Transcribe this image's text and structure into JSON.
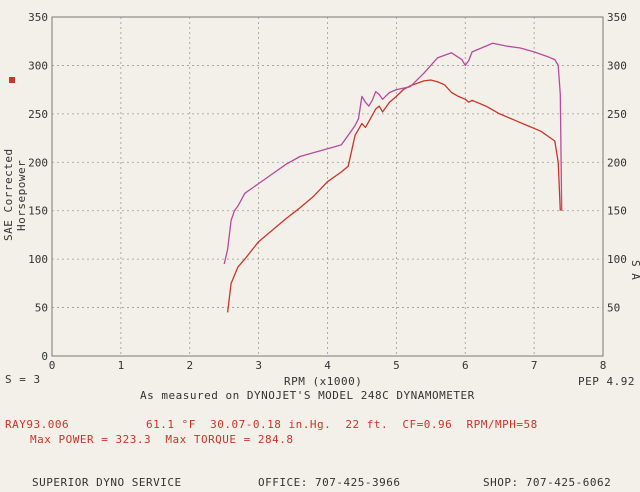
{
  "chart_data": {
    "type": "line",
    "xlabel": "RPM (x1000)",
    "ylabel": "SAE Corrected Horsepower",
    "xlim": [
      0,
      8
    ],
    "ylim": [
      0,
      350
    ],
    "x_ticks": [
      "0",
      "1",
      "2",
      "3",
      "4",
      "5",
      "6",
      "7",
      "8"
    ],
    "y_ticks_left": [
      "0",
      "50",
      "100",
      "150",
      "200",
      "250",
      "300",
      "350"
    ],
    "y_ticks_right": [
      "50",
      "100",
      "150",
      "200",
      "250",
      "300",
      "350"
    ],
    "series": [
      {
        "color": "#c8352a",
        "points": [
          [
            2.55,
            45
          ],
          [
            2.6,
            75
          ],
          [
            2.7,
            92
          ],
          [
            2.8,
            100
          ],
          [
            3.0,
            118
          ],
          [
            3.2,
            130
          ],
          [
            3.4,
            142
          ],
          [
            3.6,
            153
          ],
          [
            3.8,
            165
          ],
          [
            4.0,
            180
          ],
          [
            4.2,
            190
          ],
          [
            4.3,
            196
          ],
          [
            4.4,
            228
          ],
          [
            4.5,
            240
          ],
          [
            4.55,
            236
          ],
          [
            4.6,
            242
          ],
          [
            4.7,
            255
          ],
          [
            4.75,
            258
          ],
          [
            4.8,
            252
          ],
          [
            4.9,
            262
          ],
          [
            5.0,
            268
          ],
          [
            5.1,
            275
          ],
          [
            5.2,
            279
          ],
          [
            5.4,
            284
          ],
          [
            5.5,
            285
          ],
          [
            5.6,
            283
          ],
          [
            5.7,
            280
          ],
          [
            5.8,
            272
          ],
          [
            5.9,
            268
          ],
          [
            6.0,
            265
          ],
          [
            6.05,
            262
          ],
          [
            6.1,
            264
          ],
          [
            6.3,
            258
          ],
          [
            6.5,
            250
          ],
          [
            6.7,
            244
          ],
          [
            6.9,
            238
          ],
          [
            7.1,
            232
          ],
          [
            7.3,
            222
          ],
          [
            7.35,
            200
          ],
          [
            7.38,
            150
          ]
        ]
      },
      {
        "color": "#b84a9c",
        "points": [
          [
            2.5,
            95
          ],
          [
            2.55,
            110
          ],
          [
            2.6,
            140
          ],
          [
            2.65,
            150
          ],
          [
            2.7,
            155
          ],
          [
            2.8,
            168
          ],
          [
            3.0,
            178
          ],
          [
            3.2,
            188
          ],
          [
            3.4,
            198
          ],
          [
            3.6,
            206
          ],
          [
            3.8,
            210
          ],
          [
            4.0,
            214
          ],
          [
            4.2,
            218
          ],
          [
            4.3,
            228
          ],
          [
            4.4,
            238
          ],
          [
            4.45,
            245
          ],
          [
            4.5,
            268
          ],
          [
            4.55,
            262
          ],
          [
            4.6,
            258
          ],
          [
            4.65,
            264
          ],
          [
            4.7,
            273
          ],
          [
            4.75,
            270
          ],
          [
            4.8,
            265
          ],
          [
            4.9,
            272
          ],
          [
            5.0,
            275
          ],
          [
            5.2,
            278
          ],
          [
            5.4,
            292
          ],
          [
            5.6,
            308
          ],
          [
            5.8,
            313
          ],
          [
            5.95,
            306
          ],
          [
            6.0,
            300
          ],
          [
            6.05,
            305
          ],
          [
            6.1,
            314
          ],
          [
            6.3,
            320
          ],
          [
            6.4,
            323
          ],
          [
            6.6,
            320
          ],
          [
            6.8,
            318
          ],
          [
            7.0,
            314
          ],
          [
            7.2,
            309
          ],
          [
            7.3,
            306
          ],
          [
            7.35,
            300
          ],
          [
            7.38,
            270
          ],
          [
            7.4,
            150
          ]
        ]
      }
    ]
  },
  "labels": {
    "scale": "S = 3",
    "pep": "PEP 4.92",
    "measured": "As measured on DYNOJET'S MODEL 248C DYNAMOMETER",
    "run_id": "RAY93.006",
    "conditions": "61.1 °F  30.07-0.18 in.Hg.  22 ft.  CF=0.96  RPM/MPH=58",
    "max_line": "Max POWER = 323.3  Max TORQUE = 284.8",
    "shop_name": "SUPERIOR DYNO SERVICE",
    "office": "OFFICE: 707-425-3966",
    "shop_phone": "SHOP: 707-425-6062",
    "right_axis_fragment": "S A"
  },
  "colors": {
    "accent": "#c8352a",
    "secondary": "#b84a9c",
    "grid": "#9a9a9a"
  }
}
